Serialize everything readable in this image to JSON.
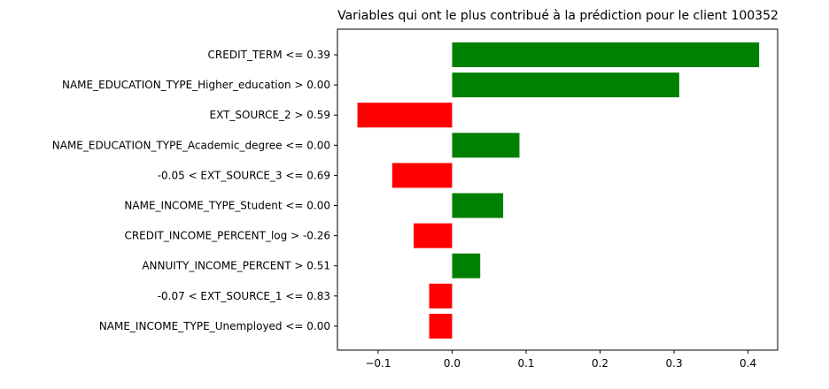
{
  "chart_data": {
    "type": "bar",
    "orientation": "horizontal",
    "title": "Variables qui ont le plus contribué à la prédiction pour le client 100352",
    "xlabel": "",
    "ylabel": "",
    "categories": [
      "CREDIT_TERM <= 0.39",
      "NAME_EDUCATION_TYPE_Higher_education > 0.00",
      "EXT_SOURCE_2 > 0.59",
      "NAME_EDUCATION_TYPE_Academic_degree <= 0.00",
      "-0.05 < EXT_SOURCE_3 <= 0.69",
      "NAME_INCOME_TYPE_Student <= 0.00",
      "CREDIT_INCOME_PERCENT_log > -0.26",
      "ANNUITY_INCOME_PERCENT > 0.51",
      "-0.07 < EXT_SOURCE_1 <= 0.83",
      "NAME_INCOME_TYPE_Unemployed <= 0.00"
    ],
    "values": [
      0.415,
      0.307,
      -0.128,
      0.091,
      -0.081,
      0.069,
      -0.052,
      0.038,
      -0.031,
      -0.031
    ],
    "xlim": [
      -0.155,
      0.44
    ],
    "xticks": [
      -0.1,
      0.0,
      0.1,
      0.2,
      0.3,
      0.4
    ],
    "xtick_labels": [
      "−0.1",
      "0.0",
      "0.1",
      "0.2",
      "0.3",
      "0.4"
    ],
    "positive_color": "#008000",
    "negative_color": "#ff0000",
    "grid": false,
    "legend": "none"
  }
}
